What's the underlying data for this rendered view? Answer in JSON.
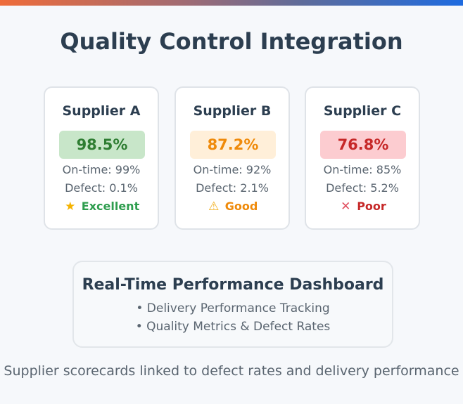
{
  "title": "Quality Control Integration",
  "suppliers": [
    {
      "name": "Supplier A",
      "score": "98.5%",
      "on_time": "On-time: 99%",
      "defect": "Defect: 0.1%",
      "rating": "Excellent",
      "icon": "star-icon",
      "icon_glyph": "★"
    },
    {
      "name": "Supplier B",
      "score": "87.2%",
      "on_time": "On-time: 92%",
      "defect": "Defect: 2.1%",
      "rating": "Good",
      "icon": "warning-icon",
      "icon_glyph": "⚠"
    },
    {
      "name": "Supplier C",
      "score": "76.8%",
      "on_time": "On-time: 85%",
      "defect": "Defect: 5.2%",
      "rating": "Poor",
      "icon": "cross-icon",
      "icon_glyph": "✕"
    }
  ],
  "dashboard": {
    "title": "Real-Time Performance Dashboard",
    "items": [
      "• Delivery Performance Tracking",
      "• Quality Metrics & Defect Rates"
    ]
  },
  "footer": "Supplier scorecards linked to defect rates and delivery performance",
  "colors": {
    "excellent": "#2e9d4e",
    "good": "#ef8a0a",
    "poor": "#c62828"
  }
}
